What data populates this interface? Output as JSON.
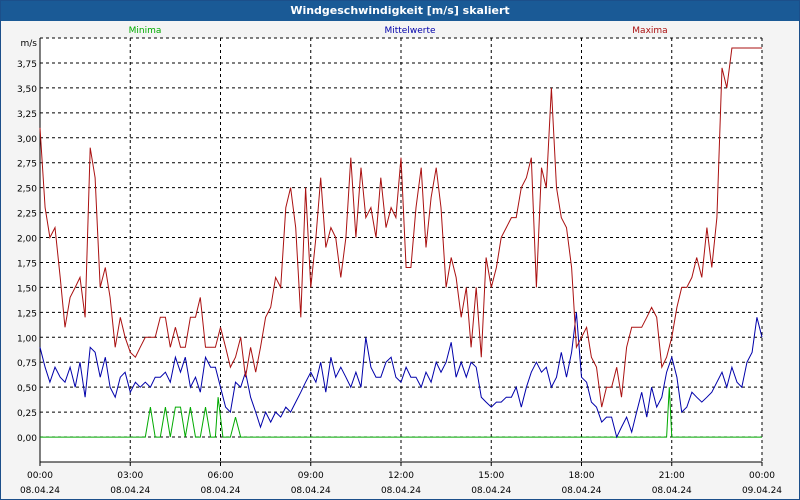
{
  "chart_data": {
    "type": "line",
    "title": "Windgeschwindigkeit [m/s] skaliert",
    "ylabel": "m/s",
    "ylim": [
      -0.25,
      4.0
    ],
    "yticks": [
      "0,00",
      "0,25",
      "0,50",
      "0,75",
      "1,00",
      "1,25",
      "1,50",
      "1,75",
      "2,00",
      "2,25",
      "2,50",
      "2,75",
      "3,00",
      "3,25",
      "3,50",
      "3,75"
    ],
    "xlim": [
      0,
      24
    ],
    "xticks": [
      {
        "time": "00:00",
        "date": "08.04.24"
      },
      {
        "time": "03:00",
        "date": "08.04.24"
      },
      {
        "time": "06:00",
        "date": "08.04.24"
      },
      {
        "time": "09:00",
        "date": "08.04.24"
      },
      {
        "time": "12:00",
        "date": "08.04.24"
      },
      {
        "time": "15:00",
        "date": "08.04.24"
      },
      {
        "time": "18:00",
        "date": "08.04.24"
      },
      {
        "time": "21:00",
        "date": "08.04.24"
      },
      {
        "time": "00:00",
        "date": "09.04.24"
      }
    ],
    "grid": true,
    "legend_placement": "top",
    "series": [
      {
        "name": "Minima",
        "color": "#00aa00",
        "points": [
          [
            0,
            0
          ],
          [
            3.5,
            0
          ],
          [
            3.67,
            0.3
          ],
          [
            3.83,
            0
          ],
          [
            4.0,
            0
          ],
          [
            4.17,
            0.3
          ],
          [
            4.33,
            0
          ],
          [
            4.5,
            0.3
          ],
          [
            4.67,
            0.3
          ],
          [
            4.83,
            0
          ],
          [
            5.0,
            0.3
          ],
          [
            5.17,
            0
          ],
          [
            5.33,
            0
          ],
          [
            5.5,
            0.3
          ],
          [
            5.67,
            0
          ],
          [
            5.83,
            0
          ],
          [
            5.92,
            0.4
          ],
          [
            6.08,
            0
          ],
          [
            6.33,
            0
          ],
          [
            6.5,
            0.2
          ],
          [
            6.67,
            0
          ],
          [
            20.83,
            0
          ],
          [
            20.92,
            0.5
          ],
          [
            21.0,
            0
          ],
          [
            24,
            0
          ]
        ]
      },
      {
        "name": "Mittelwerte",
        "color": "#0000aa",
        "points": [
          [
            0,
            0.9
          ],
          [
            0.17,
            0.7
          ],
          [
            0.33,
            0.55
          ],
          [
            0.5,
            0.7
          ],
          [
            0.67,
            0.6
          ],
          [
            0.83,
            0.55
          ],
          [
            1.0,
            0.7
          ],
          [
            1.17,
            0.5
          ],
          [
            1.33,
            0.75
          ],
          [
            1.5,
            0.4
          ],
          [
            1.67,
            0.9
          ],
          [
            1.83,
            0.85
          ],
          [
            2.0,
            0.6
          ],
          [
            2.17,
            0.8
          ],
          [
            2.33,
            0.5
          ],
          [
            2.5,
            0.4
          ],
          [
            2.67,
            0.6
          ],
          [
            2.83,
            0.65
          ],
          [
            3.0,
            0.45
          ],
          [
            3.17,
            0.55
          ],
          [
            3.33,
            0.5
          ],
          [
            3.5,
            0.55
          ],
          [
            3.67,
            0.5
          ],
          [
            3.83,
            0.6
          ],
          [
            4.0,
            0.6
          ],
          [
            4.17,
            0.65
          ],
          [
            4.33,
            0.55
          ],
          [
            4.5,
            0.8
          ],
          [
            4.67,
            0.65
          ],
          [
            4.83,
            0.8
          ],
          [
            5.0,
            0.5
          ],
          [
            5.17,
            0.6
          ],
          [
            5.33,
            0.45
          ],
          [
            5.5,
            0.8
          ],
          [
            5.67,
            0.7
          ],
          [
            5.83,
            0.7
          ],
          [
            6.0,
            0.5
          ],
          [
            6.17,
            0.3
          ],
          [
            6.33,
            0.25
          ],
          [
            6.5,
            0.55
          ],
          [
            6.67,
            0.5
          ],
          [
            6.83,
            0.65
          ],
          [
            7.0,
            0.4
          ],
          [
            7.17,
            0.25
          ],
          [
            7.33,
            0.1
          ],
          [
            7.5,
            0.25
          ],
          [
            7.67,
            0.15
          ],
          [
            7.83,
            0.25
          ],
          [
            8.0,
            0.2
          ],
          [
            8.17,
            0.3
          ],
          [
            8.33,
            0.25
          ],
          [
            8.5,
            0.35
          ],
          [
            8.67,
            0.45
          ],
          [
            8.83,
            0.55
          ],
          [
            9.0,
            0.65
          ],
          [
            9.17,
            0.55
          ],
          [
            9.33,
            0.75
          ],
          [
            9.5,
            0.45
          ],
          [
            9.67,
            0.8
          ],
          [
            9.83,
            0.6
          ],
          [
            10.0,
            0.7
          ],
          [
            10.17,
            0.6
          ],
          [
            10.33,
            0.5
          ],
          [
            10.5,
            0.65
          ],
          [
            10.67,
            0.5
          ],
          [
            10.83,
            1.0
          ],
          [
            11.0,
            0.7
          ],
          [
            11.17,
            0.6
          ],
          [
            11.33,
            0.6
          ],
          [
            11.5,
            0.75
          ],
          [
            11.67,
            0.8
          ],
          [
            11.83,
            0.6
          ],
          [
            12.0,
            0.55
          ],
          [
            12.17,
            0.7
          ],
          [
            12.33,
            0.6
          ],
          [
            12.5,
            0.6
          ],
          [
            12.67,
            0.5
          ],
          [
            12.83,
            0.65
          ],
          [
            13.0,
            0.55
          ],
          [
            13.17,
            0.75
          ],
          [
            13.33,
            0.65
          ],
          [
            13.5,
            0.75
          ],
          [
            13.67,
            0.95
          ],
          [
            13.83,
            0.6
          ],
          [
            14.0,
            0.75
          ],
          [
            14.17,
            0.6
          ],
          [
            14.33,
            0.75
          ],
          [
            14.5,
            0.7
          ],
          [
            14.67,
            0.4
          ],
          [
            14.83,
            0.35
          ],
          [
            15.0,
            0.3
          ],
          [
            15.17,
            0.35
          ],
          [
            15.33,
            0.35
          ],
          [
            15.5,
            0.4
          ],
          [
            15.67,
            0.4
          ],
          [
            15.83,
            0.5
          ],
          [
            16.0,
            0.3
          ],
          [
            16.17,
            0.5
          ],
          [
            16.33,
            0.65
          ],
          [
            16.5,
            0.75
          ],
          [
            16.67,
            0.65
          ],
          [
            16.83,
            0.7
          ],
          [
            17.0,
            0.5
          ],
          [
            17.17,
            0.6
          ],
          [
            17.33,
            0.85
          ],
          [
            17.5,
            0.6
          ],
          [
            17.67,
            0.85
          ],
          [
            17.83,
            1.25
          ],
          [
            18.0,
            0.6
          ],
          [
            18.17,
            0.55
          ],
          [
            18.33,
            0.35
          ],
          [
            18.5,
            0.3
          ],
          [
            18.67,
            0.15
          ],
          [
            18.83,
            0.2
          ],
          [
            19.0,
            0.2
          ],
          [
            19.17,
            0.0
          ],
          [
            19.33,
            0.1
          ],
          [
            19.5,
            0.2
          ],
          [
            19.67,
            0.05
          ],
          [
            19.83,
            0.25
          ],
          [
            20.0,
            0.45
          ],
          [
            20.17,
            0.2
          ],
          [
            20.33,
            0.5
          ],
          [
            20.5,
            0.3
          ],
          [
            20.67,
            0.4
          ],
          [
            20.83,
            0.65
          ],
          [
            21.0,
            0.8
          ],
          [
            21.17,
            0.6
          ],
          [
            21.33,
            0.25
          ],
          [
            21.5,
            0.3
          ],
          [
            21.67,
            0.45
          ],
          [
            21.83,
            0.4
          ],
          [
            22.0,
            0.35
          ],
          [
            22.17,
            0.4
          ],
          [
            22.33,
            0.45
          ],
          [
            22.5,
            0.55
          ],
          [
            22.67,
            0.65
          ],
          [
            22.83,
            0.5
          ],
          [
            23.0,
            0.7
          ],
          [
            23.17,
            0.55
          ],
          [
            23.33,
            0.5
          ],
          [
            23.5,
            0.75
          ],
          [
            23.67,
            0.85
          ],
          [
            23.83,
            1.2
          ],
          [
            24.0,
            1.0
          ]
        ]
      },
      {
        "name": "Maxima",
        "color": "#aa1111",
        "points": [
          [
            0,
            3.1
          ],
          [
            0.17,
            2.3
          ],
          [
            0.33,
            2.0
          ],
          [
            0.5,
            2.1
          ],
          [
            0.67,
            1.6
          ],
          [
            0.83,
            1.1
          ],
          [
            1.0,
            1.4
          ],
          [
            1.17,
            1.5
          ],
          [
            1.33,
            1.6
          ],
          [
            1.5,
            1.2
          ],
          [
            1.67,
            2.9
          ],
          [
            1.83,
            2.6
          ],
          [
            2.0,
            1.5
          ],
          [
            2.17,
            1.7
          ],
          [
            2.33,
            1.4
          ],
          [
            2.5,
            0.9
          ],
          [
            2.67,
            1.2
          ],
          [
            2.83,
            1.0
          ],
          [
            3.0,
            0.85
          ],
          [
            3.17,
            0.8
          ],
          [
            3.33,
            0.9
          ],
          [
            3.5,
            1.0
          ],
          [
            3.67,
            1.0
          ],
          [
            3.83,
            1.0
          ],
          [
            4.0,
            1.2
          ],
          [
            4.17,
            1.2
          ],
          [
            4.33,
            0.9
          ],
          [
            4.5,
            1.1
          ],
          [
            4.67,
            0.9
          ],
          [
            4.83,
            0.9
          ],
          [
            5.0,
            1.2
          ],
          [
            5.17,
            1.2
          ],
          [
            5.33,
            1.4
          ],
          [
            5.5,
            0.9
          ],
          [
            5.67,
            0.9
          ],
          [
            5.83,
            0.9
          ],
          [
            6.0,
            1.1
          ],
          [
            6.17,
            0.9
          ],
          [
            6.33,
            0.7
          ],
          [
            6.5,
            0.8
          ],
          [
            6.67,
            1.0
          ],
          [
            6.83,
            0.6
          ],
          [
            7.0,
            0.9
          ],
          [
            7.17,
            0.65
          ],
          [
            7.33,
            0.9
          ],
          [
            7.5,
            1.2
          ],
          [
            7.67,
            1.3
          ],
          [
            7.83,
            1.6
          ],
          [
            8.0,
            1.5
          ],
          [
            8.17,
            2.3
          ],
          [
            8.33,
            2.5
          ],
          [
            8.5,
            2.1
          ],
          [
            8.67,
            1.2
          ],
          [
            8.83,
            2.5
          ],
          [
            9.0,
            1.5
          ],
          [
            9.17,
            2.0
          ],
          [
            9.33,
            2.6
          ],
          [
            9.5,
            1.9
          ],
          [
            9.67,
            2.1
          ],
          [
            9.83,
            2.0
          ],
          [
            10.0,
            1.6
          ],
          [
            10.17,
            2.0
          ],
          [
            10.33,
            2.8
          ],
          [
            10.5,
            2.0
          ],
          [
            10.67,
            2.7
          ],
          [
            10.83,
            2.2
          ],
          [
            11.0,
            2.3
          ],
          [
            11.17,
            2.0
          ],
          [
            11.33,
            2.6
          ],
          [
            11.5,
            2.1
          ],
          [
            11.67,
            2.3
          ],
          [
            11.83,
            2.2
          ],
          [
            12.0,
            2.8
          ],
          [
            12.17,
            1.7
          ],
          [
            12.33,
            1.7
          ],
          [
            12.5,
            2.3
          ],
          [
            12.67,
            2.7
          ],
          [
            12.83,
            1.9
          ],
          [
            13.0,
            2.4
          ],
          [
            13.17,
            2.7
          ],
          [
            13.33,
            2.3
          ],
          [
            13.5,
            1.5
          ],
          [
            13.67,
            1.8
          ],
          [
            13.83,
            1.6
          ],
          [
            14.0,
            1.2
          ],
          [
            14.17,
            1.5
          ],
          [
            14.33,
            0.9
          ],
          [
            14.5,
            1.5
          ],
          [
            14.67,
            0.8
          ],
          [
            14.83,
            1.8
          ],
          [
            15.0,
            1.5
          ],
          [
            15.17,
            1.7
          ],
          [
            15.33,
            2.0
          ],
          [
            15.5,
            2.1
          ],
          [
            15.67,
            2.2
          ],
          [
            15.83,
            2.2
          ],
          [
            16.0,
            2.5
          ],
          [
            16.17,
            2.6
          ],
          [
            16.33,
            2.8
          ],
          [
            16.5,
            1.5
          ],
          [
            16.67,
            2.7
          ],
          [
            16.83,
            2.5
          ],
          [
            17.0,
            3.5
          ],
          [
            17.17,
            2.5
          ],
          [
            17.33,
            2.2
          ],
          [
            17.5,
            2.1
          ],
          [
            17.67,
            1.7
          ],
          [
            17.83,
            0.9
          ],
          [
            18.0,
            1.0
          ],
          [
            18.17,
            1.1
          ],
          [
            18.33,
            0.8
          ],
          [
            18.5,
            0.7
          ],
          [
            18.67,
            0.3
          ],
          [
            18.83,
            0.5
          ],
          [
            19.0,
            0.5
          ],
          [
            19.17,
            0.7
          ],
          [
            19.33,
            0.4
          ],
          [
            19.5,
            0.9
          ],
          [
            19.67,
            1.1
          ],
          [
            19.83,
            1.1
          ],
          [
            20.0,
            1.1
          ],
          [
            20.17,
            1.2
          ],
          [
            20.33,
            1.3
          ],
          [
            20.5,
            1.2
          ],
          [
            20.67,
            0.7
          ],
          [
            20.83,
            0.8
          ],
          [
            21.0,
            1.0
          ],
          [
            21.17,
            1.3
          ],
          [
            21.33,
            1.5
          ],
          [
            21.5,
            1.5
          ],
          [
            21.67,
            1.6
          ],
          [
            21.83,
            1.8
          ],
          [
            22.0,
            1.6
          ],
          [
            22.17,
            2.1
          ],
          [
            22.33,
            1.7
          ],
          [
            22.5,
            2.2
          ],
          [
            22.67,
            3.7
          ],
          [
            22.83,
            3.5
          ],
          [
            23.0,
            3.9
          ],
          [
            24.0,
            3.9
          ]
        ]
      }
    ]
  }
}
